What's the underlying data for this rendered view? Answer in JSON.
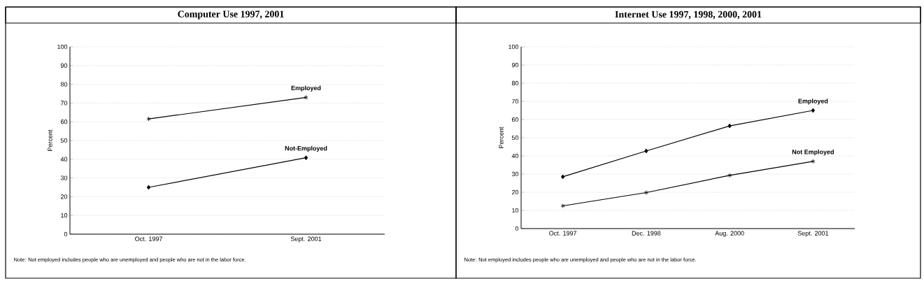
{
  "chart_data": [
    {
      "type": "line",
      "title": "Computer Use 1997, 2001",
      "ylabel": "Percent",
      "categories": [
        "Oct. 1997",
        "Sept. 2001"
      ],
      "ylim": [
        0,
        100
      ],
      "yticks": [
        0,
        10,
        20,
        30,
        40,
        50,
        60,
        70,
        80,
        90,
        100
      ],
      "grid": "y",
      "legend": false,
      "series": [
        {
          "name": "Employed",
          "color": "#000000",
          "marker": "cross",
          "values": [
            61.5,
            73
          ]
        },
        {
          "name": "Not-Employed",
          "color": "#000000",
          "marker": "diamond",
          "values": [
            25,
            40.8
          ]
        }
      ],
      "annotations": [
        "Note: Not employed includes people who are unemployed and people who are not in the labor force."
      ]
    },
    {
      "type": "line",
      "title": "Internet Use 1997, 1998, 2000, 2001",
      "ylabel": "Percent",
      "categories": [
        "Oct. 1997",
        "Dec. 1998",
        "Aug. 2000",
        "Sept. 2001"
      ],
      "ylim": [
        0,
        100
      ],
      "yticks": [
        0,
        10,
        20,
        30,
        40,
        50,
        60,
        70,
        80,
        90,
        100
      ],
      "grid": "y",
      "legend": false,
      "series": [
        {
          "name": "Employed",
          "color": "#000000",
          "marker": "diamond",
          "values": [
            28.5,
            42.7,
            56.5,
            65
          ]
        },
        {
          "name": "Not Employed",
          "color": "#000000",
          "marker": "cross",
          "values": [
            12.5,
            19.8,
            29.3,
            37
          ]
        }
      ],
      "annotations": [
        "Note: Not employed includes people who are unemployed and people who are not in the labor force."
      ]
    }
  ]
}
